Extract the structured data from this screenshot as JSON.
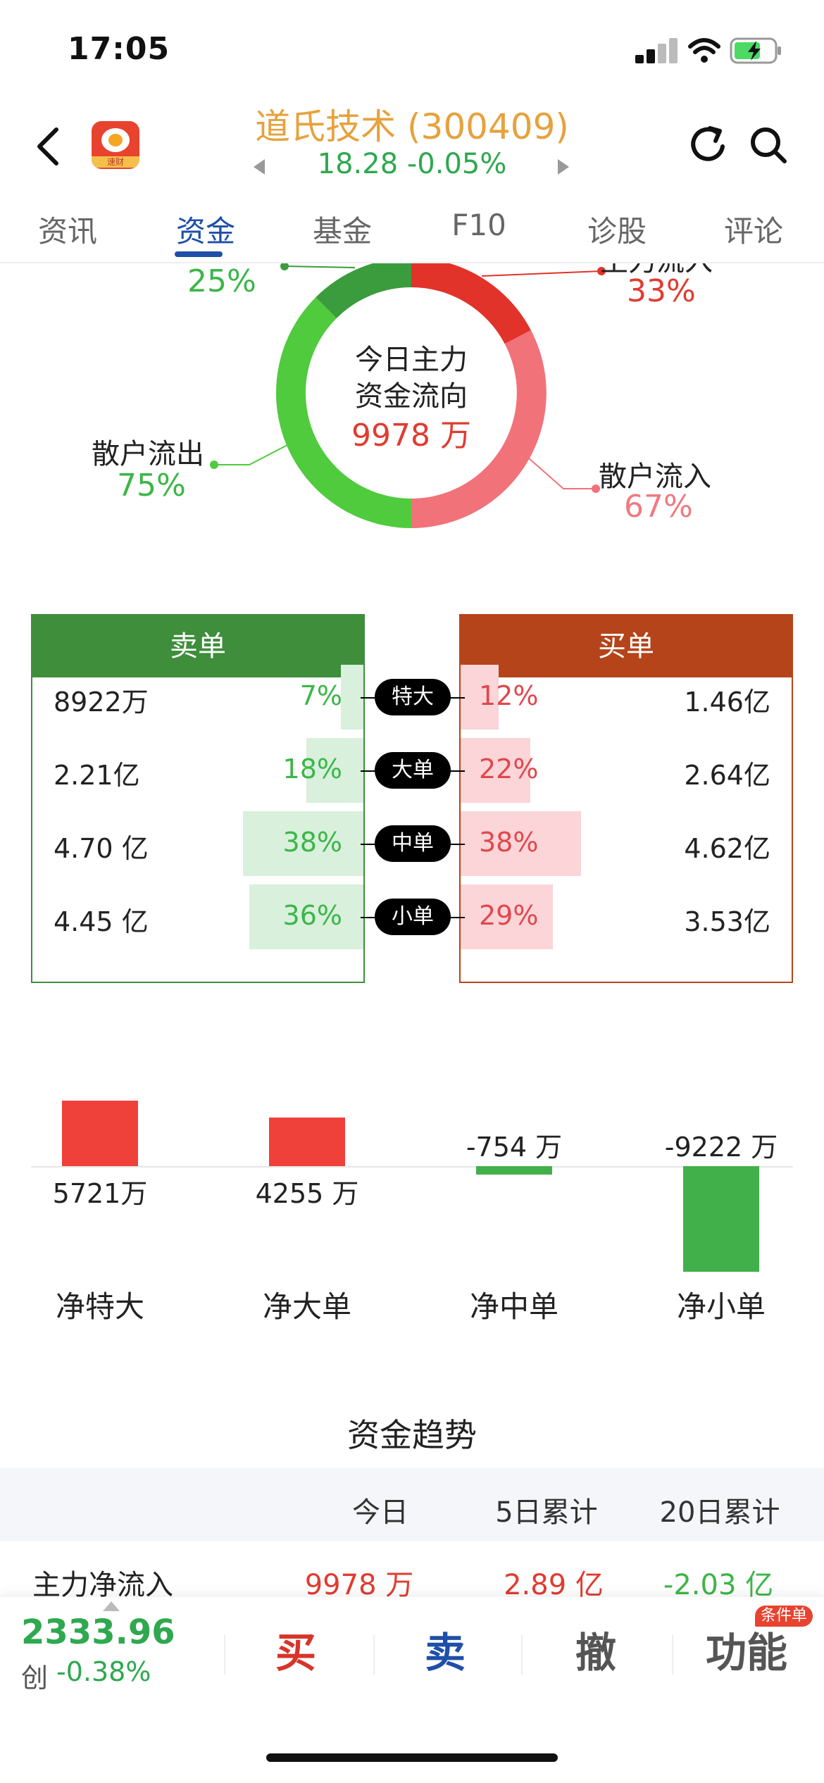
{
  "status": {
    "time": "17:05"
  },
  "header": {
    "title": "道氏技术 (300409)",
    "price_change": "18.28 -0.05%",
    "app_icon_label": "速财"
  },
  "tabs": [
    {
      "label": "资讯"
    },
    {
      "label": "资金",
      "active": true
    },
    {
      "label": "基金"
    },
    {
      "label": "F10"
    },
    {
      "label": "诊股"
    },
    {
      "label": "评论"
    }
  ],
  "donut": {
    "center_line1": "今日主力",
    "center_line2": "资金流向",
    "center_value": "9978 万",
    "main_out_pct": "25%",
    "main_in_label_partial": "主力流入",
    "main_in_pct": "33%",
    "retail_out_label": "散户流出",
    "retail_out_pct": "75%",
    "retail_in_label": "散户流入",
    "retail_in_pct": "67%",
    "colors": {
      "main_out": "#3a9c3c",
      "retail_out": "#4fcb3d",
      "main_in": "#e2332a",
      "retail_in": "#f2727a"
    }
  },
  "orders": {
    "sell_title": "卖单",
    "buy_title": "买单",
    "rows": [
      {
        "type": "特大",
        "sell_amount": "8922万",
        "sell_pct": "7%",
        "sell_frac": 0.07,
        "buy_pct": "12%",
        "buy_frac": 0.12,
        "buy_amount": "1.46亿"
      },
      {
        "type": "大单",
        "sell_amount": "2.21亿",
        "sell_pct": "18%",
        "sell_frac": 0.18,
        "buy_pct": "22%",
        "buy_frac": 0.22,
        "buy_amount": "2.64亿"
      },
      {
        "type": "中单",
        "sell_amount": "4.70 亿",
        "sell_pct": "38%",
        "sell_frac": 0.38,
        "buy_pct": "38%",
        "buy_frac": 0.38,
        "buy_amount": "4.62亿"
      },
      {
        "type": "小单",
        "sell_amount": "4.45 亿",
        "sell_pct": "36%",
        "sell_frac": 0.36,
        "buy_pct": "29%",
        "buy_frac": 0.29,
        "buy_amount": "3.53亿"
      }
    ]
  },
  "net_flows": [
    {
      "label": "净特大",
      "value": 5721,
      "display": "5721万"
    },
    {
      "label": "净大单",
      "value": 4255,
      "display": "4255 万"
    },
    {
      "label": "净中单",
      "value": -754,
      "display": "-754 万"
    },
    {
      "label": "净小单",
      "value": -9222,
      "display": "-9222 万"
    }
  ],
  "trend": {
    "title": "资金趋势",
    "columns": [
      "今日",
      "5日累计",
      "20日累计"
    ],
    "row_label": "主力净流入",
    "row_values": [
      "9978 万",
      "2.89 亿",
      "-2.03 亿"
    ]
  },
  "bottom": {
    "index_value": "2333.96",
    "index_prefix": "创",
    "index_change": "-0.38%",
    "buy": "买",
    "sell": "卖",
    "cancel": "撤",
    "functions": "功能",
    "badge": "条件单"
  }
}
